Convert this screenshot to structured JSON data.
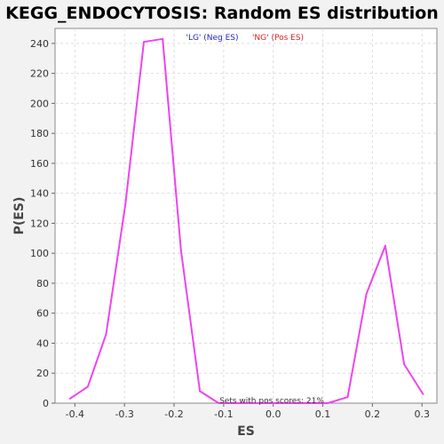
{
  "chart_data": {
    "type": "line",
    "title": "KEGG_ENDOCYTOSIS: Random ES distribution",
    "xlabel": "ES",
    "ylabel": "P(ES)",
    "xlim": [
      -0.44,
      0.33
    ],
    "ylim": [
      0,
      250
    ],
    "x_ticks": [
      -0.4,
      -0.3,
      -0.2,
      -0.1,
      0.0,
      0.1,
      0.2,
      0.3
    ],
    "x_tick_labels": [
      "-0.4",
      "-0.3",
      "-0.2",
      "-0.1",
      "0.0",
      "0.1",
      "0.2",
      "0.3"
    ],
    "y_ticks": [
      0,
      20,
      40,
      60,
      80,
      100,
      120,
      140,
      160,
      180,
      200,
      220,
      240
    ],
    "grid": true,
    "legend": [
      {
        "label": "'LG' (Neg ES)",
        "color": "#2222cc"
      },
      {
        "label": "'NG' (Pos ES)",
        "color": "#dd2222"
      }
    ],
    "annotation": "Sets with pos scores: 21%",
    "series": [
      {
        "color": "#ee44ee",
        "points": [
          {
            "x": -0.41,
            "y": 3
          },
          {
            "x": -0.374,
            "y": 11
          },
          {
            "x": -0.337,
            "y": 46
          },
          {
            "x": -0.298,
            "y": 133
          },
          {
            "x": -0.261,
            "y": 241
          },
          {
            "x": -0.223,
            "y": 243
          },
          {
            "x": -0.186,
            "y": 102
          },
          {
            "x": -0.148,
            "y": 8
          },
          {
            "x": -0.11,
            "y": 0
          },
          {
            "x": 0.11,
            "y": 0
          },
          {
            "x": 0.15,
            "y": 4
          },
          {
            "x": 0.188,
            "y": 73
          },
          {
            "x": 0.226,
            "y": 105
          },
          {
            "x": 0.264,
            "y": 26
          },
          {
            "x": 0.302,
            "y": 6
          }
        ]
      }
    ]
  }
}
